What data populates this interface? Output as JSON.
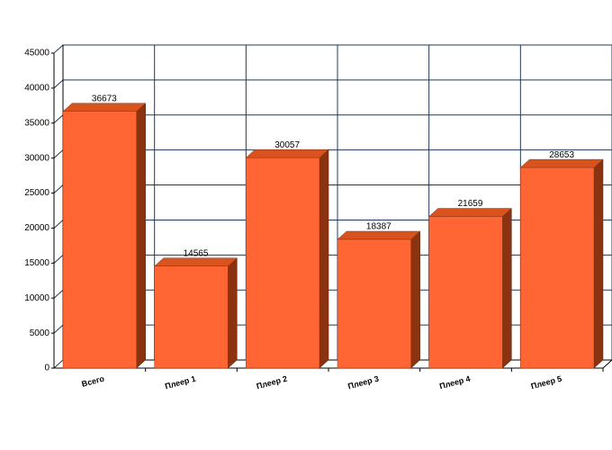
{
  "chart_data": {
    "type": "bar3d",
    "categories": [
      "Всего",
      "Плеер 1",
      "Плеер 2",
      "Плеер 3",
      "Плеер 4",
      "Плеер 5"
    ],
    "values": [
      36673,
      14565,
      30057,
      18387,
      21659,
      28653
    ],
    "color": "#ff6633",
    "ylim": [
      0,
      45000
    ],
    "yticks": [
      0,
      5000,
      10000,
      15000,
      20000,
      25000,
      30000,
      35000,
      40000,
      45000
    ],
    "grid": true
  }
}
